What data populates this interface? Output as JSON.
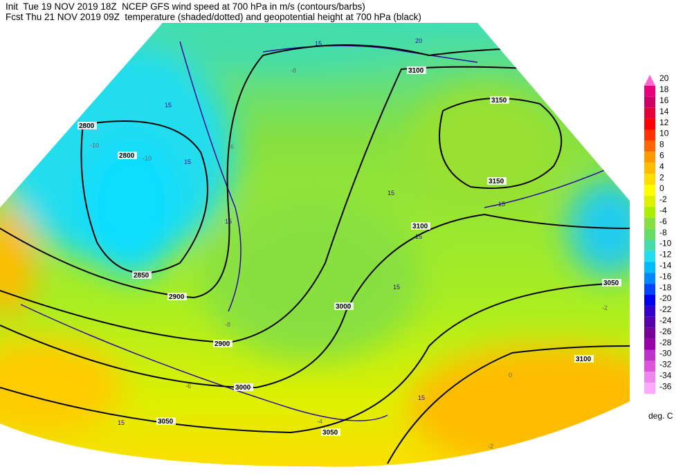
{
  "header": {
    "lines": [
      "Init  Tue 19 NOV 2019 18Z  NCEP GFS wind speed at 700 hPa in m/s (contours/barbs)",
      "Fcst Thu 21 NOV 2019 09Z  temperature (shaded/dotted) and geopotential height at 700 hPa (black)"
    ]
  },
  "legend": {
    "levels": [
      20,
      18,
      16,
      14,
      12,
      10,
      8,
      6,
      4,
      2,
      0,
      -2,
      -4,
      -6,
      -8,
      -10,
      -12,
      -14,
      -16,
      -18,
      -20,
      -22,
      -24,
      -26,
      -28,
      -30,
      -32,
      -34,
      -36
    ],
    "colors": [
      "#ff66cc",
      "#e6007a",
      "#cc0066",
      "#e6003a",
      "#ff0000",
      "#ff3300",
      "#ff6600",
      "#ff9900",
      "#ffbb00",
      "#ffdd00",
      "#ffff00",
      "#ddf000",
      "#aaee00",
      "#88e040",
      "#66dd66",
      "#44ddaa",
      "#22ddee",
      "#00bbff",
      "#0088ff",
      "#0044ff",
      "#0000ee",
      "#3300cc",
      "#5500aa",
      "#770099",
      "#9900aa",
      "#bb33cc",
      "#dd55dd",
      "#ee88ee",
      "#ffaaff"
    ],
    "unit": "deg. C"
  },
  "map": {
    "height_labels": [
      "2800",
      "2800",
      "2850",
      "2900",
      "2900",
      "3000",
      "3050",
      "3050",
      "3100",
      "3150",
      "3150",
      "3100",
      "3050",
      "3000",
      "3100"
    ],
    "wind_labels": [
      "15",
      "15",
      "15",
      "15",
      "15",
      "15",
      "15",
      "20",
      "15",
      "15",
      "15"
    ],
    "temp_labels": [
      "-10",
      "-10",
      "-8",
      "-6",
      "-4",
      "-2",
      "0",
      "-2",
      "-6",
      "-8"
    ]
  }
}
